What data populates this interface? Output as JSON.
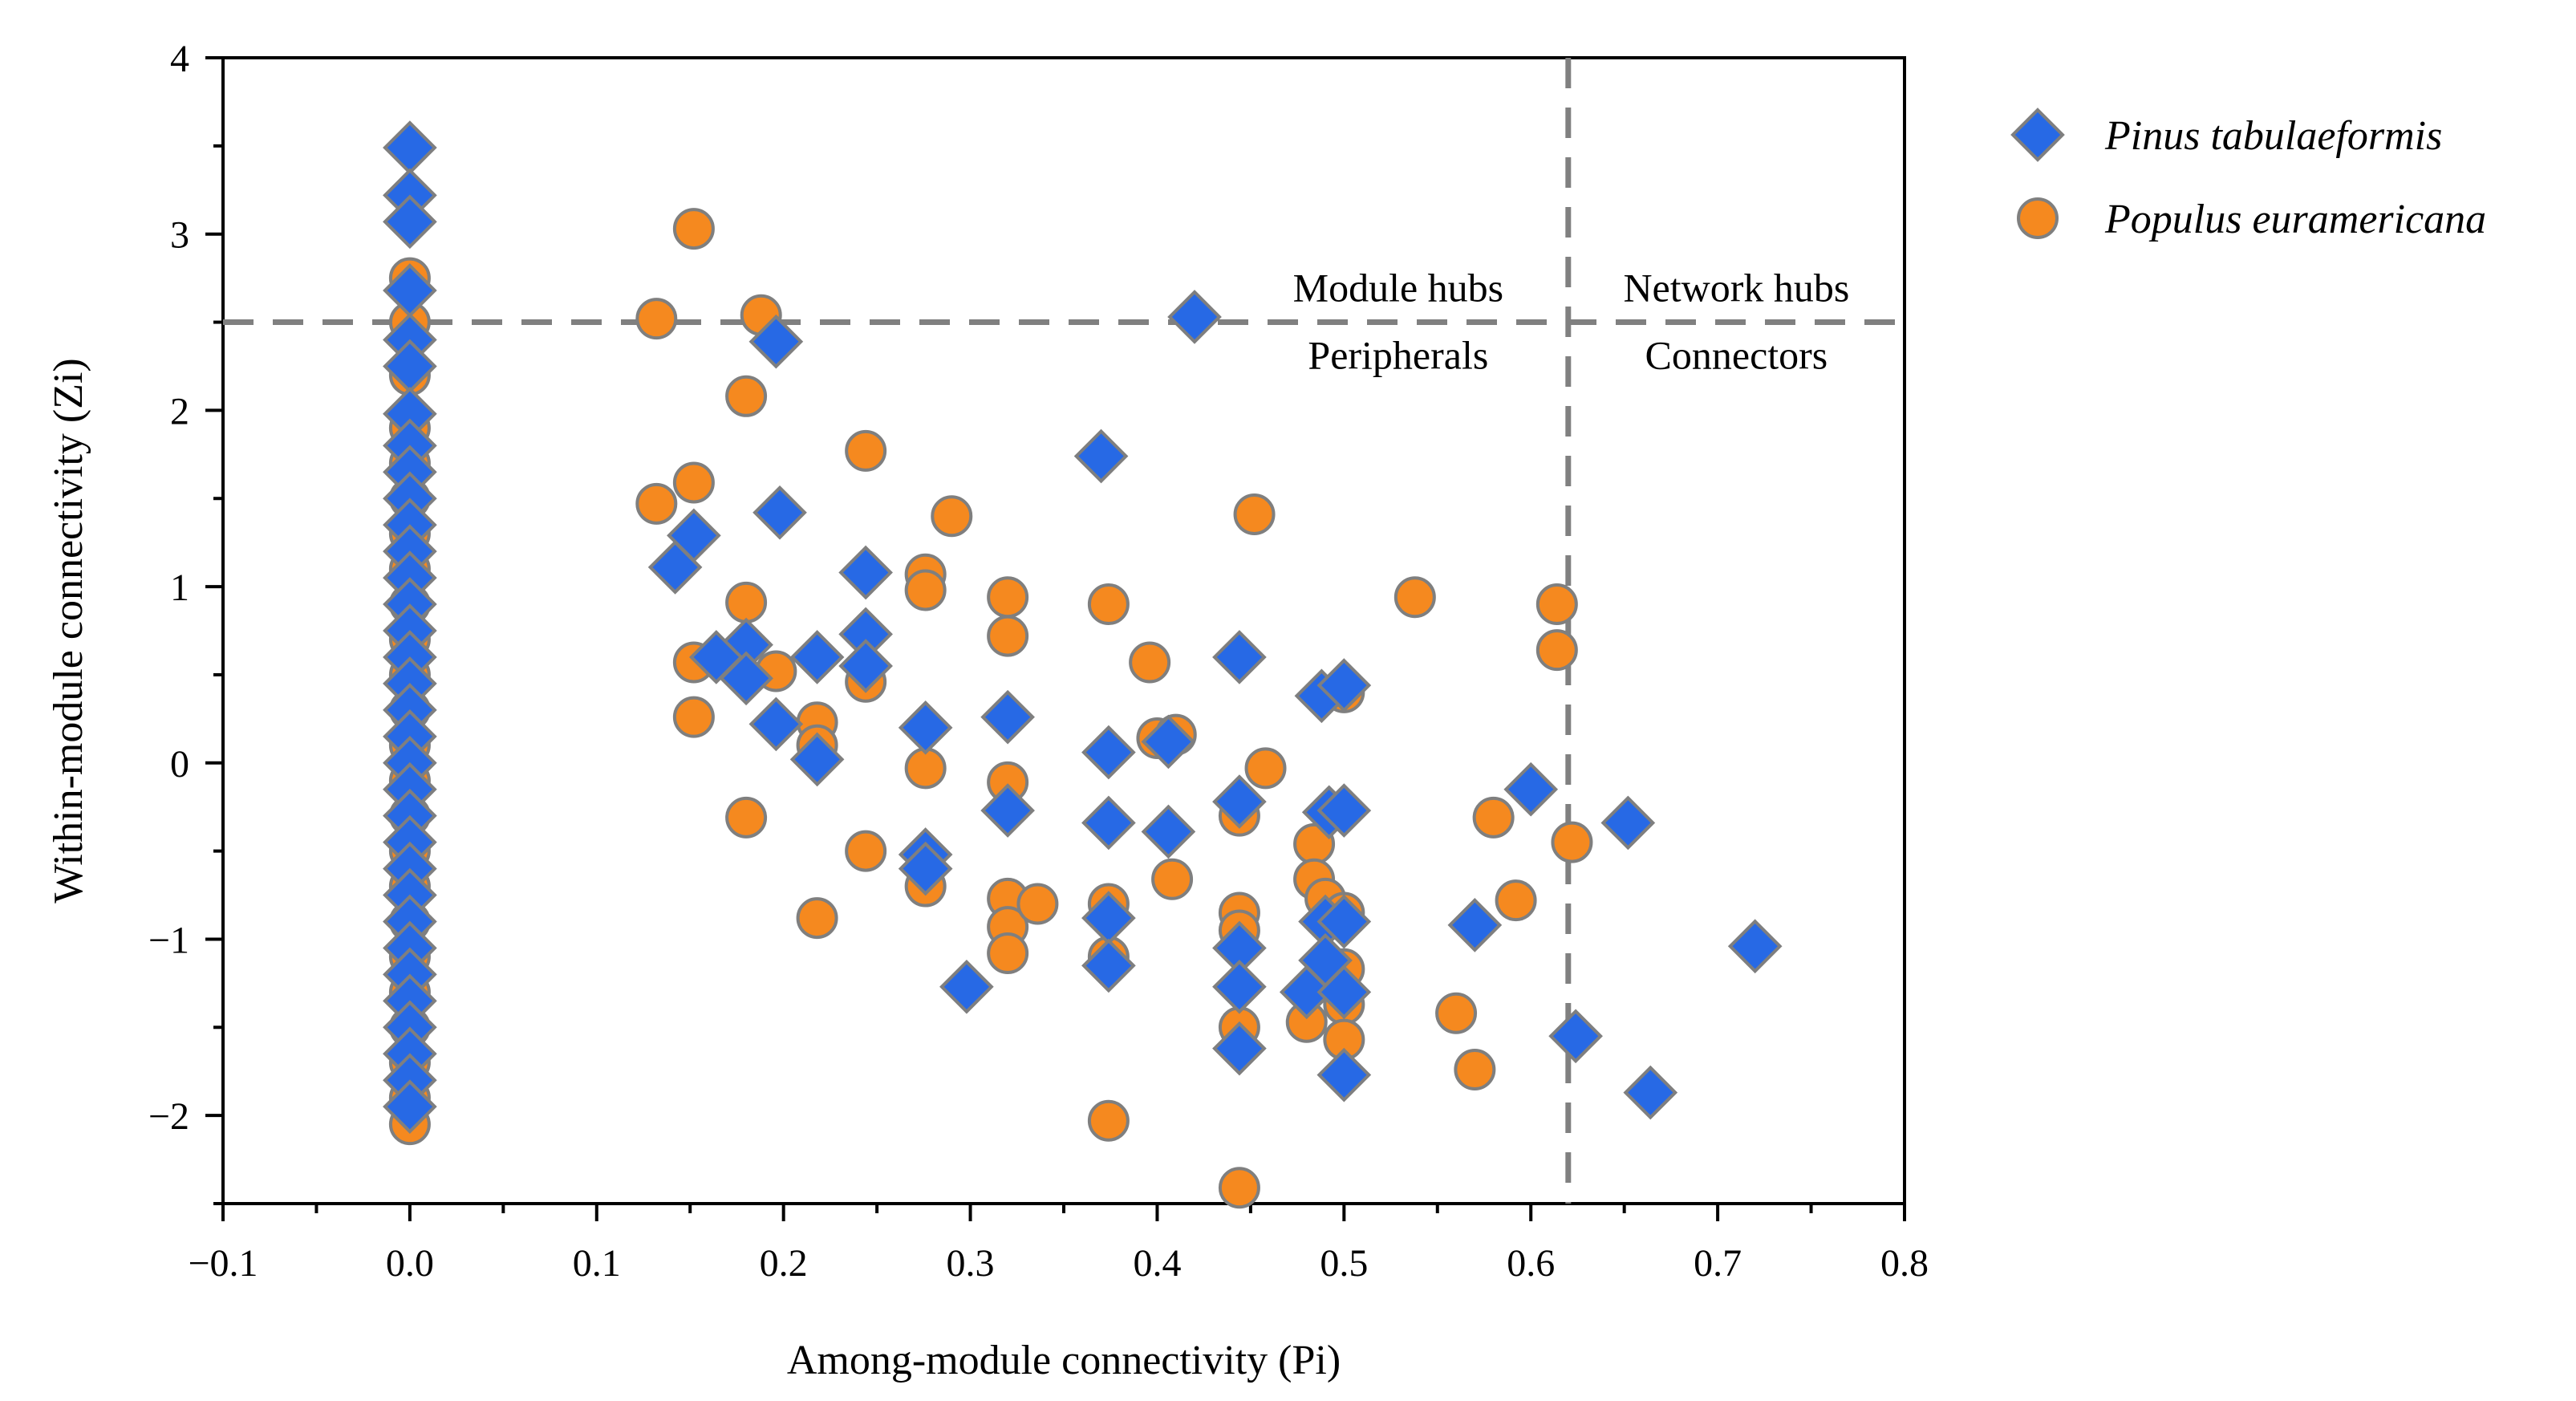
{
  "chart_data": {
    "type": "scatter",
    "title": "",
    "xlabel": "Among-module connectivity (Pi)",
    "ylabel": "Within-module connectivity (Zi)",
    "xlim": [
      -0.1,
      0.8
    ],
    "ylim": [
      -2.5,
      4
    ],
    "x_ticks": [
      -0.1,
      0.0,
      0.1,
      0.2,
      0.3,
      0.4,
      0.5,
      0.6,
      0.7,
      0.8
    ],
    "x_tick_labels": [
      "−0.1",
      "0.0",
      "0.1",
      "0.2",
      "0.3",
      "0.4",
      "0.5",
      "0.6",
      "0.7",
      "0.8"
    ],
    "y_ticks": [
      -2,
      -1,
      0,
      1,
      2,
      3,
      4
    ],
    "y_tick_labels": [
      "−2",
      "−1",
      "0",
      "1",
      "2",
      "3",
      "4"
    ],
    "thresholds": {
      "x": 0.62,
      "y": 2.5
    },
    "region_labels": {
      "module_hubs": "Module hubs",
      "network_hubs": "Network hubs",
      "peripherals": "Peripherals",
      "connectors": "Connectors"
    },
    "legend_position": "right",
    "colors": {
      "pinus": "#2769E5",
      "populus": "#F5891F",
      "marker_edge": "#7F7F7F",
      "threshold_line": "#808080"
    },
    "series": [
      {
        "name": "Populus euramericana",
        "marker": "circle",
        "points": [
          [
            0,
            2.75
          ],
          [
            0,
            2.5
          ],
          [
            0,
            2.2
          ],
          [
            0,
            1.9
          ],
          [
            0,
            1.7
          ],
          [
            0,
            1.5
          ],
          [
            0,
            1.3
          ],
          [
            0,
            1.1
          ],
          [
            0,
            0.9
          ],
          [
            0,
            0.7
          ],
          [
            0,
            0.5
          ],
          [
            0,
            0.3
          ],
          [
            0,
            0.1
          ],
          [
            0,
            -0.1
          ],
          [
            0,
            -0.3
          ],
          [
            0,
            -0.5
          ],
          [
            0,
            -0.7
          ],
          [
            0,
            -0.9
          ],
          [
            0,
            -1.1
          ],
          [
            0,
            -1.3
          ],
          [
            0,
            -1.5
          ],
          [
            0,
            -1.7
          ],
          [
            0,
            -1.9
          ],
          [
            0,
            -2.05
          ],
          [
            0.152,
            3.03
          ],
          [
            0.132,
            2.52
          ],
          [
            0.188,
            2.54
          ],
          [
            0.18,
            2.08
          ],
          [
            0.244,
            1.77
          ],
          [
            0.132,
            1.47
          ],
          [
            0.152,
            1.59
          ],
          [
            0.29,
            1.4
          ],
          [
            0.276,
            1.07
          ],
          [
            0.276,
            0.98
          ],
          [
            0.32,
            0.94
          ],
          [
            0.32,
            0.72
          ],
          [
            0.18,
            0.91
          ],
          [
            0.152,
            0.57
          ],
          [
            0.196,
            0.52
          ],
          [
            0.152,
            0.26
          ],
          [
            0.218,
            0.23
          ],
          [
            0.218,
            0.1
          ],
          [
            0.244,
            0.46
          ],
          [
            0.18,
            -0.31
          ],
          [
            0.244,
            -0.5
          ],
          [
            0.218,
            -0.88
          ],
          [
            0.276,
            -0.03
          ],
          [
            0.276,
            -0.7
          ],
          [
            0.32,
            -0.11
          ],
          [
            0.32,
            -0.77
          ],
          [
            0.32,
            -0.93
          ],
          [
            0.32,
            -1.08
          ],
          [
            0.336,
            -0.8
          ],
          [
            0.374,
            0.9
          ],
          [
            0.374,
            -0.8
          ],
          [
            0.374,
            -1.1
          ],
          [
            0.374,
            -2.03
          ],
          [
            0.396,
            0.57
          ],
          [
            0.4,
            0.14
          ],
          [
            0.41,
            0.16
          ],
          [
            0.408,
            -0.66
          ],
          [
            0.444,
            -0.3
          ],
          [
            0.444,
            -0.85
          ],
          [
            0.444,
            -0.95
          ],
          [
            0.444,
            -1.5
          ],
          [
            0.444,
            -2.41
          ],
          [
            0.452,
            1.41
          ],
          [
            0.458,
            -0.03
          ],
          [
            0.484,
            -0.46
          ],
          [
            0.484,
            -0.66
          ],
          [
            0.49,
            -0.77
          ],
          [
            0.48,
            -1.47
          ],
          [
            0.5,
            0.4
          ],
          [
            0.5,
            -0.85
          ],
          [
            0.5,
            -1.17
          ],
          [
            0.5,
            -1.37
          ],
          [
            0.5,
            -1.57
          ],
          [
            0.538,
            0.94
          ],
          [
            0.56,
            -1.42
          ],
          [
            0.57,
            -1.74
          ],
          [
            0.58,
            -0.31
          ],
          [
            0.592,
            -0.78
          ],
          [
            0.614,
            0.9
          ],
          [
            0.614,
            0.64
          ],
          [
            0.622,
            -0.45
          ]
        ]
      },
      {
        "name": "Pinus tabulaeformis",
        "marker": "diamond",
        "points": [
          [
            0,
            3.49
          ],
          [
            0,
            3.22
          ],
          [
            0,
            3.07
          ],
          [
            0,
            2.68
          ],
          [
            0,
            2.4
          ],
          [
            0,
            2.25
          ],
          [
            0,
            1.98
          ],
          [
            0,
            1.8
          ],
          [
            0,
            1.65
          ],
          [
            0,
            1.5
          ],
          [
            0,
            1.35
          ],
          [
            0,
            1.2
          ],
          [
            0,
            1.05
          ],
          [
            0,
            0.9
          ],
          [
            0,
            0.75
          ],
          [
            0,
            0.6
          ],
          [
            0,
            0.45
          ],
          [
            0,
            0.3
          ],
          [
            0,
            0.15
          ],
          [
            0,
            0.0
          ],
          [
            0,
            -0.15
          ],
          [
            0,
            -0.3
          ],
          [
            0,
            -0.45
          ],
          [
            0,
            -0.6
          ],
          [
            0,
            -0.75
          ],
          [
            0,
            -0.9
          ],
          [
            0,
            -1.05
          ],
          [
            0,
            -1.2
          ],
          [
            0,
            -1.35
          ],
          [
            0,
            -1.5
          ],
          [
            0,
            -1.65
          ],
          [
            0,
            -1.8
          ],
          [
            0,
            -1.95
          ],
          [
            0.42,
            2.53
          ],
          [
            0.196,
            2.39
          ],
          [
            0.37,
            1.74
          ],
          [
            0.198,
            1.42
          ],
          [
            0.152,
            1.29
          ],
          [
            0.142,
            1.11
          ],
          [
            0.244,
            1.08
          ],
          [
            0.244,
            0.73
          ],
          [
            0.18,
            0.67
          ],
          [
            0.164,
            0.6
          ],
          [
            0.218,
            0.6
          ],
          [
            0.244,
            0.55
          ],
          [
            0.18,
            0.48
          ],
          [
            0.196,
            0.22
          ],
          [
            0.218,
            0.02
          ],
          [
            0.276,
            0.2
          ],
          [
            0.32,
            0.26
          ],
          [
            0.32,
            -0.27
          ],
          [
            0.276,
            -0.52
          ],
          [
            0.276,
            -0.6
          ],
          [
            0.298,
            -1.27
          ],
          [
            0.374,
            0.06
          ],
          [
            0.374,
            -0.34
          ],
          [
            0.374,
            -0.88
          ],
          [
            0.374,
            -1.15
          ],
          [
            0.406,
            0.12
          ],
          [
            0.406,
            -0.39
          ],
          [
            0.444,
            0.6
          ],
          [
            0.444,
            -0.22
          ],
          [
            0.444,
            -1.05
          ],
          [
            0.444,
            -1.27
          ],
          [
            0.444,
            -1.62
          ],
          [
            0.488,
            0.38
          ],
          [
            0.5,
            0.44
          ],
          [
            0.492,
            -0.28
          ],
          [
            0.5,
            -0.27
          ],
          [
            0.49,
            -0.9
          ],
          [
            0.5,
            -0.9
          ],
          [
            0.49,
            -1.12
          ],
          [
            0.48,
            -1.3
          ],
          [
            0.5,
            -1.3
          ],
          [
            0.5,
            -1.77
          ],
          [
            0.57,
            -0.92
          ],
          [
            0.6,
            -0.15
          ],
          [
            0.624,
            -1.55
          ],
          [
            0.652,
            -0.34
          ],
          [
            0.664,
            -1.87
          ],
          [
            0.72,
            -1.04
          ]
        ]
      }
    ]
  },
  "legend": {
    "items": [
      {
        "label": "Pinus tabulaeformis",
        "marker": "diamond"
      },
      {
        "label": "Populus euramericana",
        "marker": "circle"
      }
    ]
  }
}
